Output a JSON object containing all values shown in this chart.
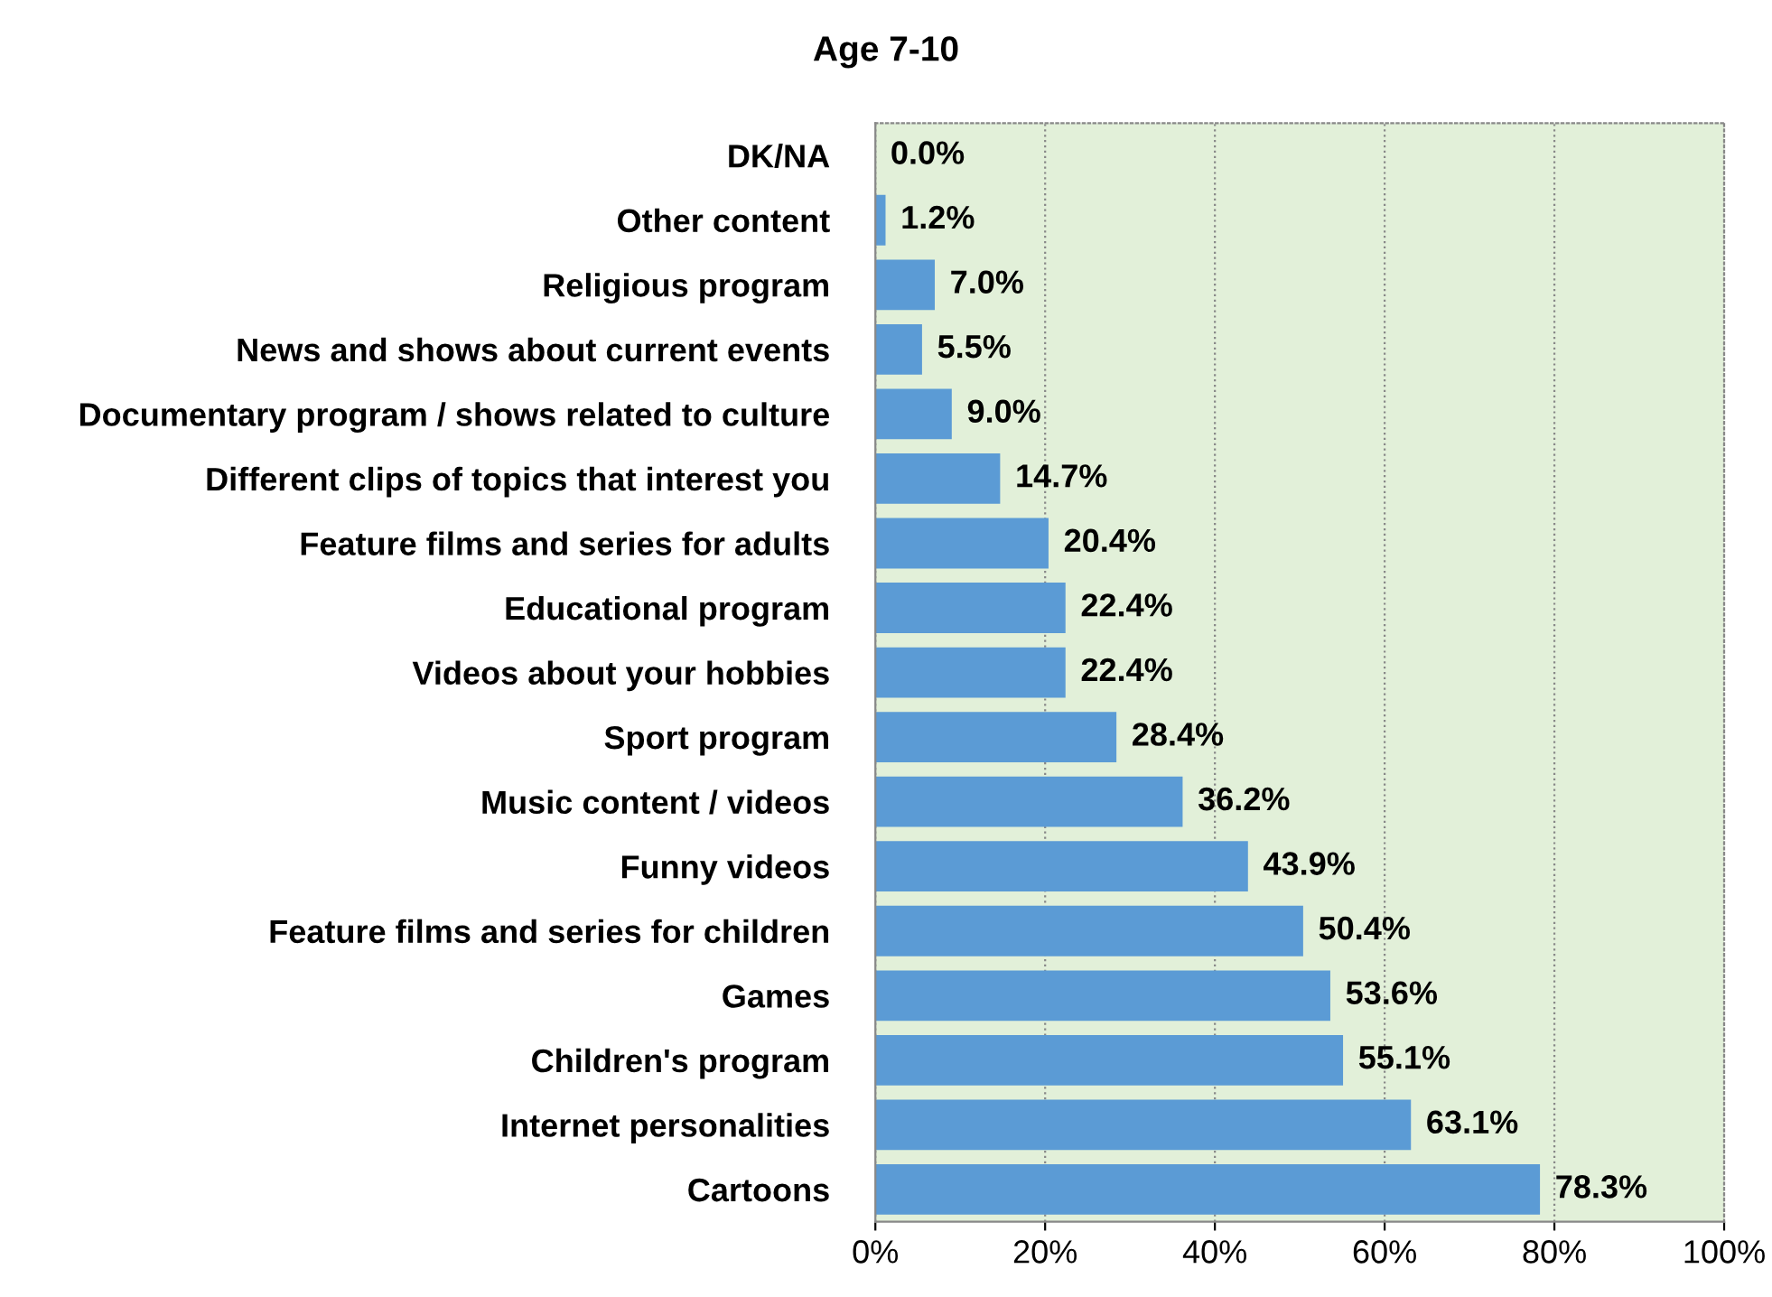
{
  "chart_data": {
    "type": "bar",
    "orientation": "horizontal",
    "title": "Age 7-10",
    "categories": [
      "DK/NA",
      "Other content",
      "Religious program",
      "News and shows about current events",
      "Documentary program / shows related to culture",
      "Different clips of topics that interest you",
      "Feature films and series for adults",
      "Educational program",
      "Videos about your hobbies",
      "Sport program",
      "Music content / videos",
      "Funny videos",
      "Feature films and series for children",
      "Games",
      "Children's program",
      "Internet personalities",
      "Cartoons"
    ],
    "values": [
      0.0,
      1.2,
      7.0,
      5.5,
      9.0,
      14.7,
      20.4,
      22.4,
      22.4,
      28.4,
      36.2,
      43.9,
      50.4,
      53.6,
      55.1,
      63.1,
      78.3
    ],
    "value_labels": [
      "0.0%",
      "1.2%",
      "7.0%",
      "5.5%",
      "9.0%",
      "14.7%",
      "20.4%",
      "22.4%",
      "22.4%",
      "28.4%",
      "36.2%",
      "43.9%",
      "50.4%",
      "53.6%",
      "55.1%",
      "63.1%",
      "78.3%"
    ],
    "color": "#5b9bd5",
    "xlim": [
      0,
      100
    ],
    "xticks": [
      {
        "value": 0,
        "label": "0%"
      },
      {
        "value": 20,
        "label": "20%"
      },
      {
        "value": 40,
        "label": "40%"
      },
      {
        "value": 60,
        "label": "60%"
      },
      {
        "value": 80,
        "label": "80%"
      },
      {
        "value": 100,
        "label": "100%"
      }
    ],
    "grid": "x",
    "legend": false
  }
}
